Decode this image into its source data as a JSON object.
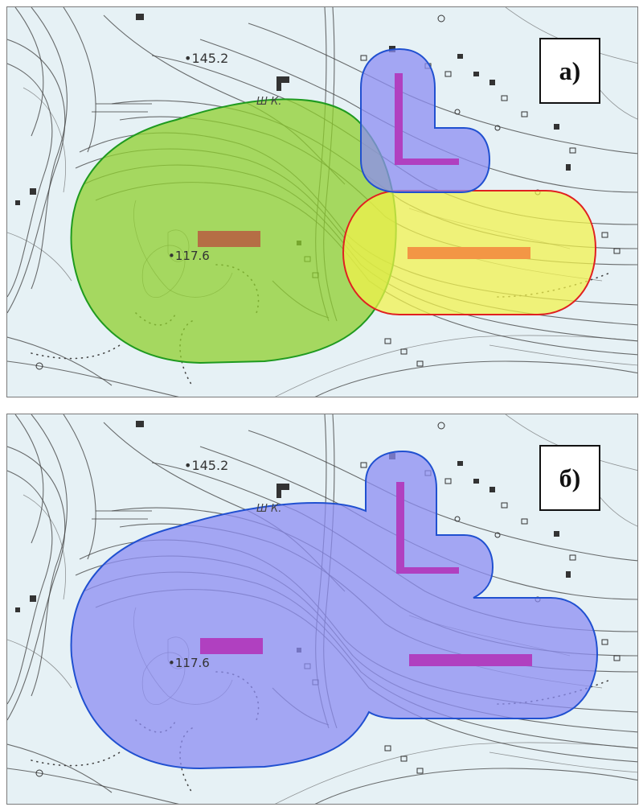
{
  "panels": [
    {
      "id": "a",
      "label": "а)",
      "map_labels": {
        "elevation_top": "145.2",
        "elevation_low": "117.6",
        "code": "Ш К."
      },
      "zones": [
        {
          "name": "green-zone",
          "fill": "#8fcf2e",
          "stroke": "#1f9a1f"
        },
        {
          "name": "yellow-zone",
          "fill": "#f3f34a",
          "stroke": "#e02020"
        },
        {
          "name": "blue-zone",
          "fill": "#8c8cf2",
          "stroke": "#2050d0"
        }
      ],
      "sources": [
        {
          "name": "brown-source",
          "color": "#b56e45"
        },
        {
          "name": "orange-source",
          "color": "#f39645"
        },
        {
          "name": "purple-l-source",
          "color": "#b040c0"
        }
      ]
    },
    {
      "id": "b",
      "label": "б)",
      "map_labels": {
        "elevation_top": "145.2",
        "elevation_low": "117.6",
        "code": "Ш К."
      },
      "zones": [
        {
          "name": "merged-blue-zone",
          "fill": "#8c8cf2",
          "stroke": "#2050d0"
        }
      ],
      "sources": [
        {
          "name": "purple-left-source",
          "color": "#b040c0"
        },
        {
          "name": "purple-right-source",
          "color": "#b040c0"
        },
        {
          "name": "purple-l-source",
          "color": "#b040c0"
        }
      ]
    }
  ]
}
